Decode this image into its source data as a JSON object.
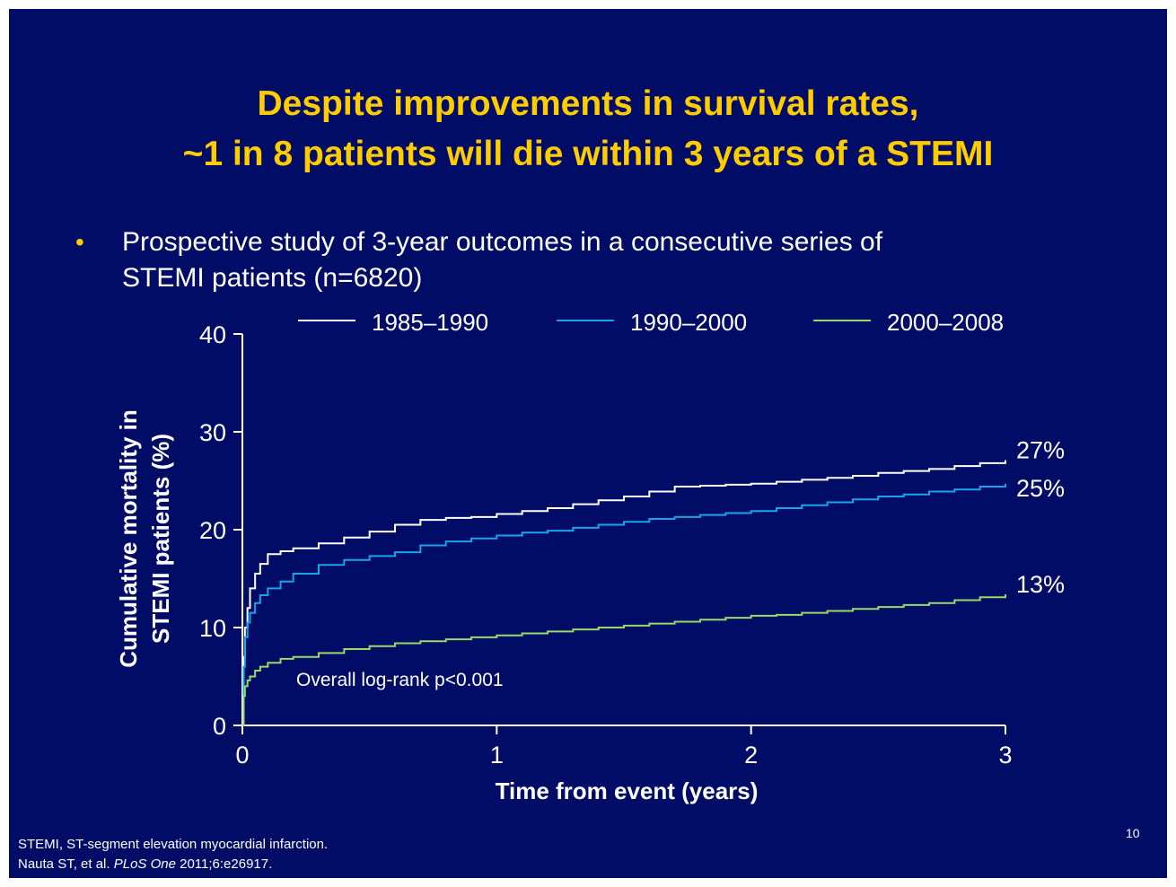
{
  "slide": {
    "title_line1": "Despite improvements in survival rates,",
    "title_line2": "~1 in 8 patients will die within 3 years of a STEMI",
    "bullet_marker": "•",
    "bullet_line1": "Prospective study of 3-year outcomes in a consecutive series of",
    "bullet_line2": "STEMI patients (n=6820)",
    "footnote_line1": "STEMI, ST-segment elevation myocardial infarction.",
    "footnote_line2_prefix": "Nauta ST, et al. ",
    "footnote_line2_journal": "PLoS One",
    "footnote_line2_suffix": " 2011;6:e26917.",
    "page_number": "10",
    "colors": {
      "background": "#000c66",
      "title": "#ffcc00",
      "text": "#ffffff"
    }
  },
  "chart_data": {
    "type": "line",
    "step": true,
    "title": "",
    "xlabel": "Time from event (years)",
    "ylabel_line1": "Cumulative mortality in",
    "ylabel_line2": "STEMI patients (%)",
    "xlim": [
      0,
      3
    ],
    "ylim": [
      0,
      40
    ],
    "xticks": [
      0,
      1,
      2,
      3
    ],
    "yticks": [
      0,
      10,
      20,
      30,
      40
    ],
    "grid": false,
    "legend_position": "top",
    "annotation": "Overall log-rank p<0.001",
    "series": [
      {
        "name": "1985–1990",
        "color": "#ffffff",
        "end_label": "27%",
        "x": [
          0,
          0.005,
          0.01,
          0.02,
          0.03,
          0.05,
          0.07,
          0.1,
          0.15,
          0.2,
          0.3,
          0.4,
          0.5,
          0.6,
          0.7,
          0.8,
          0.9,
          1.0,
          1.1,
          1.2,
          1.3,
          1.4,
          1.5,
          1.6,
          1.7,
          1.8,
          1.9,
          2.0,
          2.1,
          2.2,
          2.3,
          2.4,
          2.5,
          2.6,
          2.7,
          2.8,
          2.9,
          3.0
        ],
        "y": [
          0,
          7,
          10,
          12,
          14,
          15.5,
          16.5,
          17.5,
          17.8,
          18.1,
          18.6,
          19.2,
          19.8,
          20.5,
          21.0,
          21.2,
          21.3,
          21.6,
          21.9,
          22.2,
          22.6,
          23.0,
          23.4,
          23.9,
          24.4,
          24.5,
          24.6,
          24.7,
          24.9,
          25.1,
          25.3,
          25.5,
          25.8,
          26.0,
          26.2,
          26.5,
          26.8,
          27.1
        ]
      },
      {
        "name": "1990–2000",
        "color": "#1aa3e8",
        "end_label": "25%",
        "x": [
          0,
          0.005,
          0.01,
          0.02,
          0.03,
          0.05,
          0.07,
          0.1,
          0.15,
          0.2,
          0.3,
          0.4,
          0.5,
          0.6,
          0.7,
          0.8,
          0.9,
          1.0,
          1.1,
          1.2,
          1.3,
          1.4,
          1.5,
          1.6,
          1.7,
          1.8,
          1.9,
          2.0,
          2.1,
          2.2,
          2.3,
          2.4,
          2.5,
          2.6,
          2.7,
          2.8,
          2.9,
          3.0
        ],
        "y": [
          0,
          6,
          9,
          10.5,
          11.5,
          12.5,
          13.3,
          14.0,
          14.7,
          15.5,
          16.4,
          16.9,
          17.3,
          17.7,
          18.4,
          18.8,
          19.1,
          19.4,
          19.7,
          19.9,
          20.2,
          20.5,
          20.8,
          21.1,
          21.3,
          21.5,
          21.7,
          21.9,
          22.2,
          22.5,
          22.8,
          23.1,
          23.4,
          23.6,
          23.9,
          24.1,
          24.4,
          24.7
        ]
      },
      {
        "name": "2000–2008",
        "color": "#99d966",
        "end_label": "13%",
        "x": [
          0,
          0.005,
          0.01,
          0.02,
          0.03,
          0.05,
          0.07,
          0.1,
          0.15,
          0.2,
          0.3,
          0.4,
          0.5,
          0.6,
          0.7,
          0.8,
          0.9,
          1.0,
          1.1,
          1.2,
          1.3,
          1.4,
          1.5,
          1.6,
          1.7,
          1.8,
          1.9,
          2.0,
          2.1,
          2.2,
          2.3,
          2.4,
          2.5,
          2.6,
          2.7,
          2.8,
          2.9,
          3.0
        ],
        "y": [
          0,
          3,
          4,
          4.6,
          5.0,
          5.6,
          6.0,
          6.4,
          6.8,
          7.0,
          7.4,
          7.8,
          8.1,
          8.4,
          8.6,
          8.8,
          9.0,
          9.2,
          9.4,
          9.6,
          9.8,
          10.0,
          10.2,
          10.4,
          10.6,
          10.8,
          11.0,
          11.2,
          11.3,
          11.5,
          11.7,
          11.9,
          12.1,
          12.3,
          12.5,
          12.8,
          13.1,
          13.4
        ]
      }
    ]
  }
}
